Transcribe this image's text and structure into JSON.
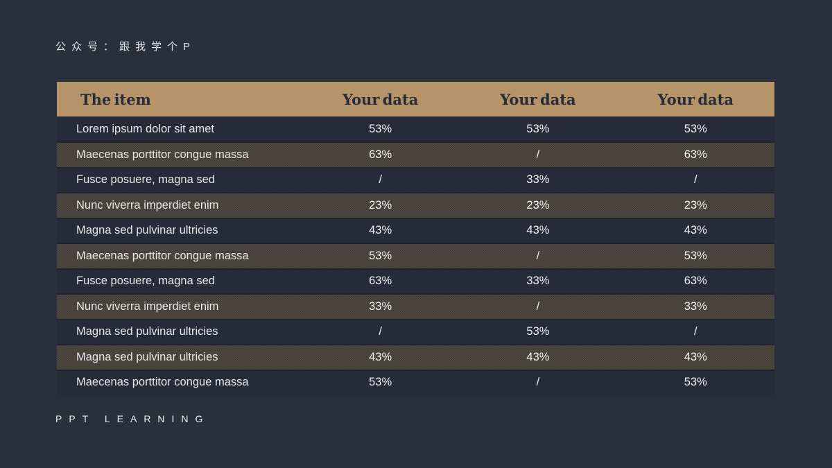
{
  "slide": {
    "watermark": "公众号：跟我学个P",
    "footer": "PPT LEARNING"
  },
  "table": {
    "headers": [
      "The item",
      "Your data",
      "Your data",
      "Your data"
    ],
    "rows": [
      {
        "item": "Lorem ipsum dolor sit amet",
        "values": [
          "53%",
          "53%",
          "53%"
        ]
      },
      {
        "item": "Maecenas porttitor congue massa",
        "values": [
          "63%",
          "/",
          "63%"
        ]
      },
      {
        "item": "Fusce posuere, magna sed",
        "values": [
          "/",
          "33%",
          "/"
        ]
      },
      {
        "item": "Nunc viverra imperdiet enim",
        "values": [
          "23%",
          "23%",
          "23%"
        ]
      },
      {
        "item": "Magna sed pulvinar ultricies",
        "values": [
          "43%",
          "43%",
          "43%"
        ]
      },
      {
        "item": "Maecenas porttitor congue massa",
        "values": [
          "53%",
          "/",
          "53%"
        ]
      },
      {
        "item": "Fusce posuere, magna sed",
        "values": [
          "63%",
          "33%",
          "63%"
        ]
      },
      {
        "item": "Nunc viverra imperdiet enim",
        "values": [
          "33%",
          "/",
          "33%"
        ]
      },
      {
        "item": "Magna sed pulvinar ultricies",
        "values": [
          "/",
          "53%",
          "/"
        ]
      },
      {
        "item": "Magna sed pulvinar ultricies",
        "values": [
          "43%",
          "43%",
          "43%"
        ]
      },
      {
        "item": "Maecenas porttitor congue massa",
        "values": [
          "53%",
          "/",
          "53%"
        ]
      }
    ]
  },
  "colors": {
    "background": "#2b2f3c",
    "row_dark": "#272b39",
    "separator": "#20242f",
    "header_bg": "#b5946a",
    "header_text": "#282c39",
    "stripe_light": "#554e46",
    "stripe_dark": "#3c3834",
    "text": "#e9ebee"
  }
}
